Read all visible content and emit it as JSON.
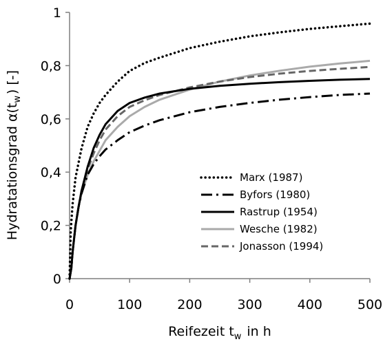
{
  "chart_data": {
    "type": "line",
    "title": "",
    "xlabel": "Reifezeit t_w in h",
    "ylabel": "Hydratationsgrad α(t_w) [-]",
    "xlim": [
      0,
      500
    ],
    "ylim": [
      0,
      1
    ],
    "x_ticks": [
      0,
      100,
      200,
      300,
      400,
      500
    ],
    "x_tick_labels": [
      "0",
      "100",
      "200",
      "300",
      "400",
      "500"
    ],
    "y_ticks": [
      0,
      0.2,
      0.4,
      0.6,
      0.8,
      1
    ],
    "y_tick_labels": [
      "0",
      "0,2",
      "0,4",
      "0,6",
      "0,8",
      "1"
    ],
    "grid": false,
    "legend_position": "bottom-right",
    "series": [
      {
        "name": "Marx (1987)",
        "color": "#000000",
        "dash": "dotted",
        "x": [
          0,
          2,
          5,
          10,
          20,
          30,
          40,
          50,
          60,
          80,
          100,
          125,
          150,
          200,
          250,
          300,
          350,
          400,
          450,
          500
        ],
        "y": [
          0,
          0.18,
          0.28,
          0.38,
          0.49,
          0.57,
          0.62,
          0.66,
          0.69,
          0.74,
          0.78,
          0.81,
          0.83,
          0.866,
          0.89,
          0.91,
          0.925,
          0.938,
          0.948,
          0.958
        ]
      },
      {
        "name": "Byfors (1980)",
        "color": "#000000",
        "dash": "dashdot",
        "x": [
          0,
          3,
          5,
          10,
          15,
          20,
          30,
          40,
          50,
          60,
          80,
          100,
          125,
          150,
          200,
          250,
          300,
          350,
          400,
          450,
          500
        ],
        "y": [
          0,
          0.04,
          0.1,
          0.2,
          0.27,
          0.32,
          0.39,
          0.43,
          0.46,
          0.485,
          0.52,
          0.55,
          0.575,
          0.595,
          0.625,
          0.645,
          0.66,
          0.672,
          0.682,
          0.69,
          0.695
        ]
      },
      {
        "name": "Rastrup (1954)",
        "color": "#000000",
        "dash": "solid",
        "x": [
          0,
          3,
          5,
          10,
          15,
          20,
          30,
          40,
          50,
          60,
          80,
          100,
          125,
          150,
          200,
          250,
          300,
          350,
          400,
          450,
          500
        ],
        "y": [
          0,
          0.04,
          0.1,
          0.2,
          0.27,
          0.33,
          0.42,
          0.49,
          0.54,
          0.58,
          0.63,
          0.66,
          0.68,
          0.695,
          0.713,
          0.724,
          0.732,
          0.738,
          0.743,
          0.747,
          0.75
        ]
      },
      {
        "name": "Wesche (1982)",
        "color": "#aaaaaa",
        "dash": "solid",
        "x": [
          0,
          3,
          5,
          10,
          15,
          20,
          30,
          40,
          50,
          60,
          80,
          100,
          125,
          150,
          200,
          250,
          300,
          350,
          400,
          450,
          500
        ],
        "y": [
          0,
          0.04,
          0.1,
          0.2,
          0.27,
          0.32,
          0.39,
          0.44,
          0.48,
          0.52,
          0.57,
          0.61,
          0.645,
          0.672,
          0.71,
          0.74,
          0.763,
          0.781,
          0.796,
          0.808,
          0.818
        ]
      },
      {
        "name": "Jonasson (1994)",
        "color": "#666666",
        "dash": "dashed",
        "x": [
          0,
          3,
          5,
          10,
          15,
          20,
          30,
          40,
          50,
          60,
          80,
          100,
          125,
          150,
          200,
          250,
          300,
          350,
          400,
          450,
          500
        ],
        "y": [
          0,
          0.04,
          0.1,
          0.2,
          0.27,
          0.33,
          0.41,
          0.47,
          0.52,
          0.56,
          0.61,
          0.645,
          0.67,
          0.69,
          0.718,
          0.74,
          0.757,
          0.77,
          0.78,
          0.788,
          0.795
        ]
      }
    ]
  }
}
